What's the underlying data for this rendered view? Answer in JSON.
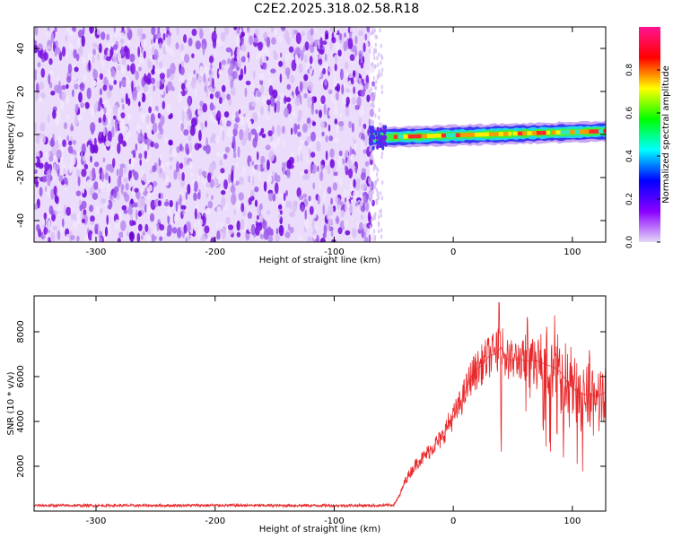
{
  "title": "C2E2.2025.318.02.58.R18",
  "colors": {
    "background": "#ffffff",
    "snr_line": "#e8282a",
    "spectrogram_noise": "#7a10e0",
    "colorbar_stops": [
      "#e6d8f8",
      "#8a00ff",
      "#0000ff",
      "#00ffff",
      "#00ff00",
      "#ffff00",
      "#ff0000",
      "#ff1493"
    ]
  },
  "chart_data": [
    {
      "type": "heatmap",
      "title": "",
      "xlabel": "Height of straight line (km)",
      "ylabel": "Frequency (Hz)",
      "xlim": [
        -352,
        128
      ],
      "ylim": [
        -50,
        50
      ],
      "xticks": [
        -300,
        -200,
        -100,
        0,
        100
      ],
      "xtick_labels": [
        "-300",
        "-200",
        "-100",
        "0",
        "100"
      ],
      "yticks": [
        -40,
        -20,
        0,
        20,
        40
      ],
      "ytick_labels": [
        "-40",
        "-20",
        "0",
        "20",
        "40"
      ],
      "colorbar": {
        "label": "Normalized spectral amplitude",
        "range": [
          0,
          1
        ],
        "ticks": [
          0,
          0.2,
          0.4,
          0.6,
          0.8
        ],
        "tick_labels": [
          "0.0",
          "0.2",
          "0.4",
          "0.6",
          "0.8"
        ]
      },
      "regions": [
        {
          "x_range": [
            -352,
            -70
          ],
          "freq_range": [
            -50,
            50
          ],
          "amplitude": [
            0.02,
            0.2
          ],
          "description_value": "broadband noise"
        },
        {
          "x_range": [
            -70,
            128
          ],
          "freq_center_start": -1.5,
          "freq_center_end": 1.5,
          "freq_halfwidth": 3,
          "amplitude_peak": 0.95
        }
      ],
      "grid": false
    },
    {
      "type": "line",
      "title": "",
      "xlabel": "Height of straight line (km)",
      "ylabel": "SNR (10 * v/v)",
      "xlim": [
        -352,
        128
      ],
      "ylim": [
        0,
        9600
      ],
      "xticks": [
        -300,
        -200,
        -100,
        0,
        100
      ],
      "xtick_labels": [
        "-300",
        "-200",
        "-100",
        "0",
        "100"
      ],
      "yticks": [
        2000,
        4000,
        6000,
        8000
      ],
      "ytick_labels": [
        "2000",
        "4000",
        "6000",
        "8000"
      ],
      "series": [
        {
          "color": "#e8282a",
          "x": [
            -352,
            -300,
            -250,
            -200,
            -150,
            -100,
            -60,
            -50,
            -45,
            -40,
            -35,
            -30,
            -25,
            -20,
            -15,
            -10,
            -5,
            0,
            5,
            10,
            15,
            20,
            25,
            30,
            35,
            40,
            45,
            50,
            55,
            60,
            65,
            70,
            75,
            80,
            85,
            90,
            95,
            100,
            105,
            110,
            115,
            120,
            128
          ],
          "y": [
            250,
            250,
            250,
            260,
            250,
            250,
            250,
            280,
            700,
            1400,
            1800,
            2200,
            2400,
            2700,
            3000,
            3200,
            3800,
            4200,
            4700,
            5300,
            6000,
            6300,
            6600,
            6900,
            7000,
            7300,
            6800,
            6700,
            6800,
            6700,
            6700,
            6700,
            6600,
            6500,
            6400,
            6200,
            5800,
            5500,
            5300,
            5200,
            5200,
            5100,
            5300
          ]
        }
      ],
      "grid": false
    }
  ]
}
